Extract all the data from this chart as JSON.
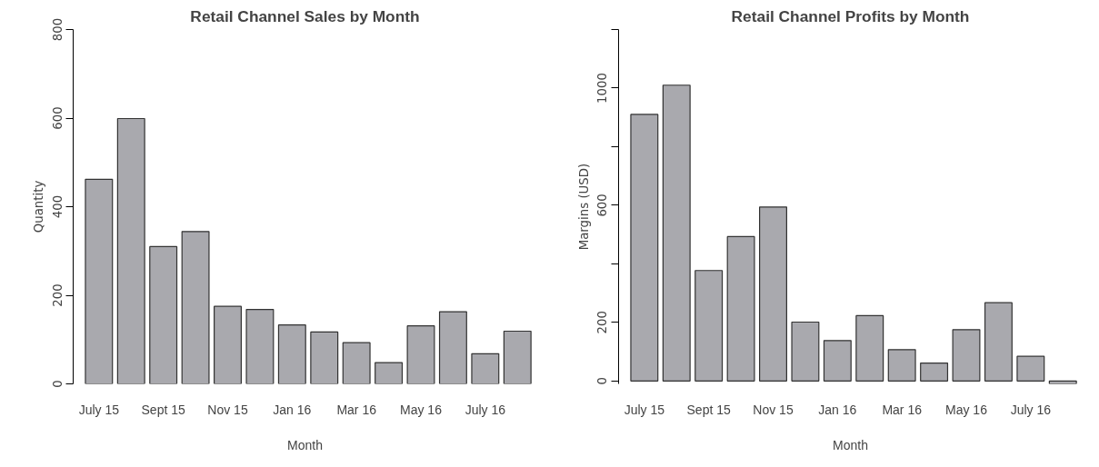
{
  "chart_data": [
    {
      "type": "bar",
      "title": "Retail Channel Sales by Month",
      "xlabel": "Month",
      "ylabel": "Quantity",
      "categories": [
        "July 15",
        null,
        "Sept 15",
        null,
        "Nov 15",
        null,
        "Jan 16",
        null,
        "Mar 16",
        null,
        "May 16",
        null,
        "July 16",
        null
      ],
      "values": [
        462,
        599,
        310,
        344,
        175,
        168,
        133,
        117,
        93,
        48,
        131,
        163,
        68,
        119
      ],
      "color": "#a9a9ae",
      "ylim": [
        0,
        800
      ],
      "yticks": [
        0,
        200,
        400,
        600,
        800
      ],
      "grid": false
    },
    {
      "type": "bar",
      "title": "Retail Channel Profits by Month",
      "xlabel": "Month",
      "ylabel": "Margins (USD)",
      "categories": [
        "July 15",
        null,
        "Sept 15",
        null,
        "Nov 15",
        null,
        "Jan 16",
        null,
        "Mar 16",
        null,
        "May 16",
        null,
        "July 16",
        null
      ],
      "values": [
        910,
        1010,
        377,
        493,
        594,
        201,
        138,
        223,
        107,
        61,
        175,
        267,
        84,
        -10
      ],
      "color": "#a9a9ae",
      "ylim": [
        -10,
        1200
      ],
      "yticks": [
        0,
        200,
        {
          "value": 400,
          "label": null
        },
        600,
        {
          "value": 800,
          "label": null
        },
        1000,
        {
          "value": 1200,
          "label": null
        }
      ],
      "grid": false
    }
  ]
}
